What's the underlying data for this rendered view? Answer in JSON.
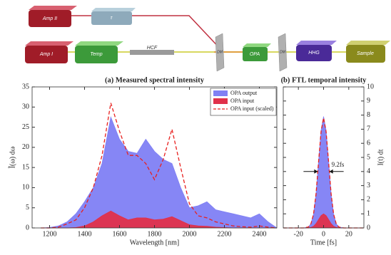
{
  "diagram": {
    "nodes": [
      {
        "label": "Amp II"
      },
      {
        "label": "τ"
      },
      {
        "label": "Amp I"
      },
      {
        "label": "Temp"
      },
      {
        "label": "HCF"
      },
      {
        "label": "DM"
      },
      {
        "label": "OPA"
      },
      {
        "label": "DM"
      },
      {
        "label": "HHG"
      },
      {
        "label": "Sample"
      }
    ]
  },
  "chart_data": [
    {
      "type": "area",
      "title": "(a) Measured spectral intensity",
      "x_label": "Wavelength [nm]",
      "y_label": "Ĩ(ω) dω",
      "x": [
        1150,
        1200,
        1250,
        1300,
        1350,
        1400,
        1450,
        1500,
        1550,
        1600,
        1650,
        1700,
        1750,
        1800,
        1850,
        1900,
        1950,
        2000,
        2050,
        2100,
        2150,
        2200,
        2250,
        2300,
        2350,
        2400,
        2450,
        2500
      ],
      "series": [
        {
          "name": "OPA output",
          "color": "#8080f4",
          "style": "area",
          "values": [
            0,
            0.1,
            0.5,
            1.5,
            3.5,
            6.5,
            10,
            16,
            27.5,
            22,
            19,
            18.5,
            22,
            19,
            17,
            16,
            10,
            5,
            5.5,
            6.5,
            4.5,
            4,
            3.5,
            3,
            2.5,
            3.5,
            1.5,
            0
          ]
        },
        {
          "name": "OPA input",
          "color": "#e0304a",
          "style": "area",
          "values": [
            0,
            0,
            0,
            0,
            0.1,
            0.5,
            1.5,
            3,
            4.2,
            3,
            2,
            2.5,
            2.5,
            2,
            2.2,
            2.8,
            1.8,
            0.8,
            0.5,
            0.4,
            0.2,
            0.1,
            0,
            0,
            0,
            0,
            0,
            0
          ]
        },
        {
          "name": "OPA input (scaled)",
          "color": "#e8201e",
          "style": "dashed",
          "values": [
            0,
            0,
            0.2,
            1,
            2,
            5,
            10,
            18,
            31,
            24,
            18,
            18,
            16,
            12,
            17,
            24.5,
            15,
            6,
            3,
            2.5,
            1.5,
            1,
            0.5,
            0.3,
            0.2,
            0.5,
            0.2,
            0
          ]
        }
      ],
      "xlim": [
        1100,
        2500
      ],
      "xticks": [
        1200,
        1400,
        1600,
        1800,
        2000,
        2200,
        2400
      ],
      "ylim": [
        0,
        35
      ],
      "yticks": [
        0,
        5,
        10,
        15,
        20,
        25,
        30,
        35
      ],
      "legend": "upper right"
    },
    {
      "type": "area",
      "title": "(b) FTL temporal intensity",
      "x_label": "Time [fs]",
      "y_label": "I(t) dt",
      "x": [
        -32,
        -16,
        -12,
        -10,
        -8,
        -6,
        -4,
        -2,
        0,
        2,
        4,
        6,
        8,
        10,
        12,
        16,
        32
      ],
      "series": [
        {
          "name": "OPA output",
          "color": "#8080f4",
          "style": "area",
          "values": [
            0,
            0,
            0.07,
            0.3,
            0.98,
            2.43,
            4.69,
            6.93,
            7.9,
            6.93,
            4.69,
            2.43,
            0.98,
            0.3,
            0.07,
            0,
            0
          ]
        },
        {
          "name": "OPA input",
          "color": "#e0304a",
          "style": "area",
          "values": [
            0,
            0,
            0.01,
            0.04,
            0.12,
            0.31,
            0.59,
            0.88,
            1,
            0.88,
            0.59,
            0.31,
            0.12,
            0.04,
            0.01,
            0,
            0
          ]
        },
        {
          "name": "OPA input (scaled)",
          "color": "#e8201e",
          "style": "dashed",
          "values": [
            0,
            0,
            0.07,
            0.3,
            0.97,
            2.4,
            4.63,
            6.84,
            7.8,
            6.84,
            4.63,
            2.4,
            0.97,
            0.3,
            0.07,
            0,
            0
          ]
        }
      ],
      "xlim": [
        -32,
        32
      ],
      "xticks": [
        -20,
        0,
        20
      ],
      "y2lim": [
        0,
        10
      ],
      "y2ticks": [
        0,
        1,
        2,
        3,
        4,
        5,
        6,
        7,
        8,
        9,
        10
      ],
      "annotation": {
        "text": "9.2fs",
        "x": [
          -4.6,
          4.6
        ],
        "y": 4
      }
    }
  ]
}
